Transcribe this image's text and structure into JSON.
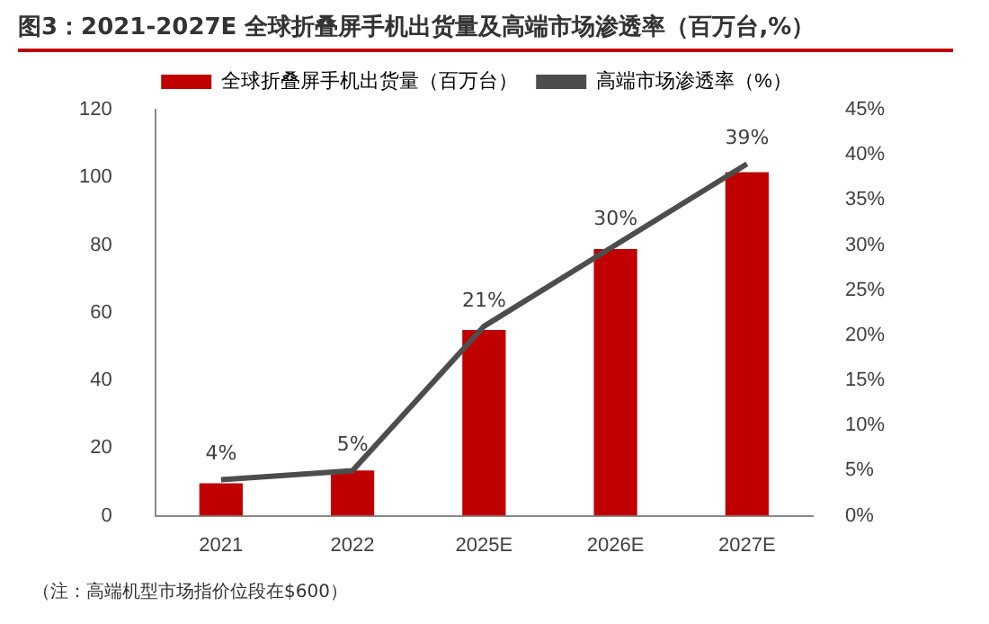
{
  "chart_data": {
    "type": "bar",
    "title": "图3：2021-2027E 全球折叠屏手机出货量及高端市场渗透率（百万台,%）",
    "categories": [
      "2021",
      "2022",
      "2025E",
      "2026E",
      "2027E"
    ],
    "series": [
      {
        "name": "全球折叠屏手机出货量（百万台）",
        "color": "#c00000",
        "values": [
          9.6,
          13.4,
          54.9,
          78.8,
          101.5
        ]
      },
      {
        "name": "高端市场渗透率（%）",
        "type": "line",
        "axis": "y2",
        "color": "#4d4d4d",
        "values": [
          4,
          5,
          21,
          30,
          39
        ],
        "value_labels": [
          "4%",
          "5%",
          "21%",
          "30%",
          "39%"
        ]
      }
    ],
    "ylim": [
      0,
      120
    ],
    "yticks": [
      0,
      20,
      40,
      60,
      80,
      100,
      120
    ],
    "y2lim": [
      0,
      45
    ],
    "y2ticks": [
      {
        "value": 0,
        "label": "0%"
      },
      {
        "value": 5,
        "label": "5%"
      },
      {
        "value": 10,
        "label": "10%"
      },
      {
        "value": 15,
        "label": "15%"
      },
      {
        "value": 20,
        "label": "20%"
      },
      {
        "value": 25,
        "label": "25%"
      },
      {
        "value": 30,
        "label": "30%"
      },
      {
        "value": 35,
        "label": "35%"
      },
      {
        "value": 40,
        "label": "40%"
      },
      {
        "value": 45,
        "label": "45%"
      }
    ],
    "grid": false,
    "legend": "top",
    "marker": "none",
    "line_style": "solid",
    "annotations": [
      "（注：高端机型市场指价位段在$600）"
    ]
  }
}
